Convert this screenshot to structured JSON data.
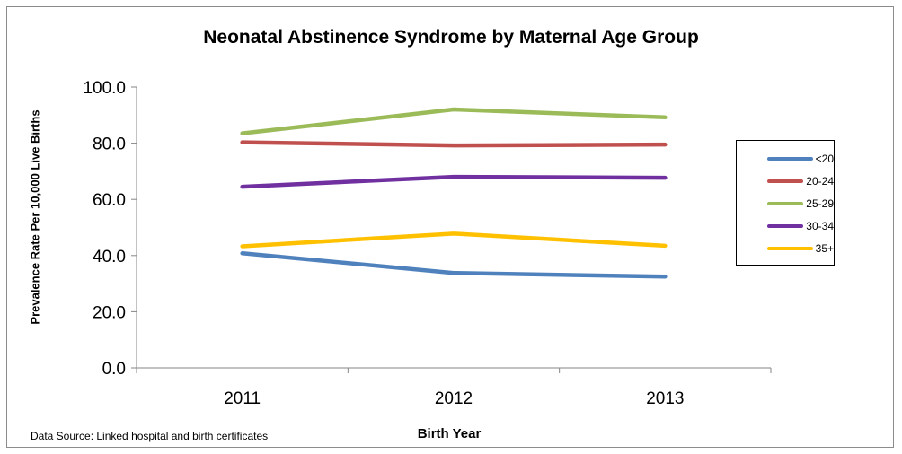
{
  "chart_data": {
    "type": "line",
    "title": "Neonatal Abstinence Syndrome by Maternal Age Group",
    "xlabel": "Birth Year",
    "ylabel": "Prevalence Rate Per  10,000 Live Births",
    "source_note": "Data Source: Linked hospital and birth certificates",
    "categories": [
      "2011",
      "2012",
      "2013"
    ],
    "ylim": [
      0,
      100
    ],
    "yticks": [
      "0.0",
      "20.0",
      "40.0",
      "60.0",
      "80.0",
      "100.0"
    ],
    "grid": false,
    "legend_position": "right",
    "series": [
      {
        "name": "<20",
        "color": "#4f81bd",
        "values": [
          40.8,
          33.8,
          32.5
        ]
      },
      {
        "name": "20-24",
        "color": "#c0504d",
        "values": [
          80.3,
          79.2,
          79.5
        ]
      },
      {
        "name": "25-29",
        "color": "#9bbb59",
        "values": [
          83.5,
          92.0,
          89.2
        ]
      },
      {
        "name": "30-34",
        "color": "#7030a0",
        "values": [
          64.5,
          68.0,
          67.7
        ]
      },
      {
        "name": "35+",
        "color": "#ffc000",
        "values": [
          43.3,
          47.8,
          43.5
        ]
      }
    ]
  }
}
